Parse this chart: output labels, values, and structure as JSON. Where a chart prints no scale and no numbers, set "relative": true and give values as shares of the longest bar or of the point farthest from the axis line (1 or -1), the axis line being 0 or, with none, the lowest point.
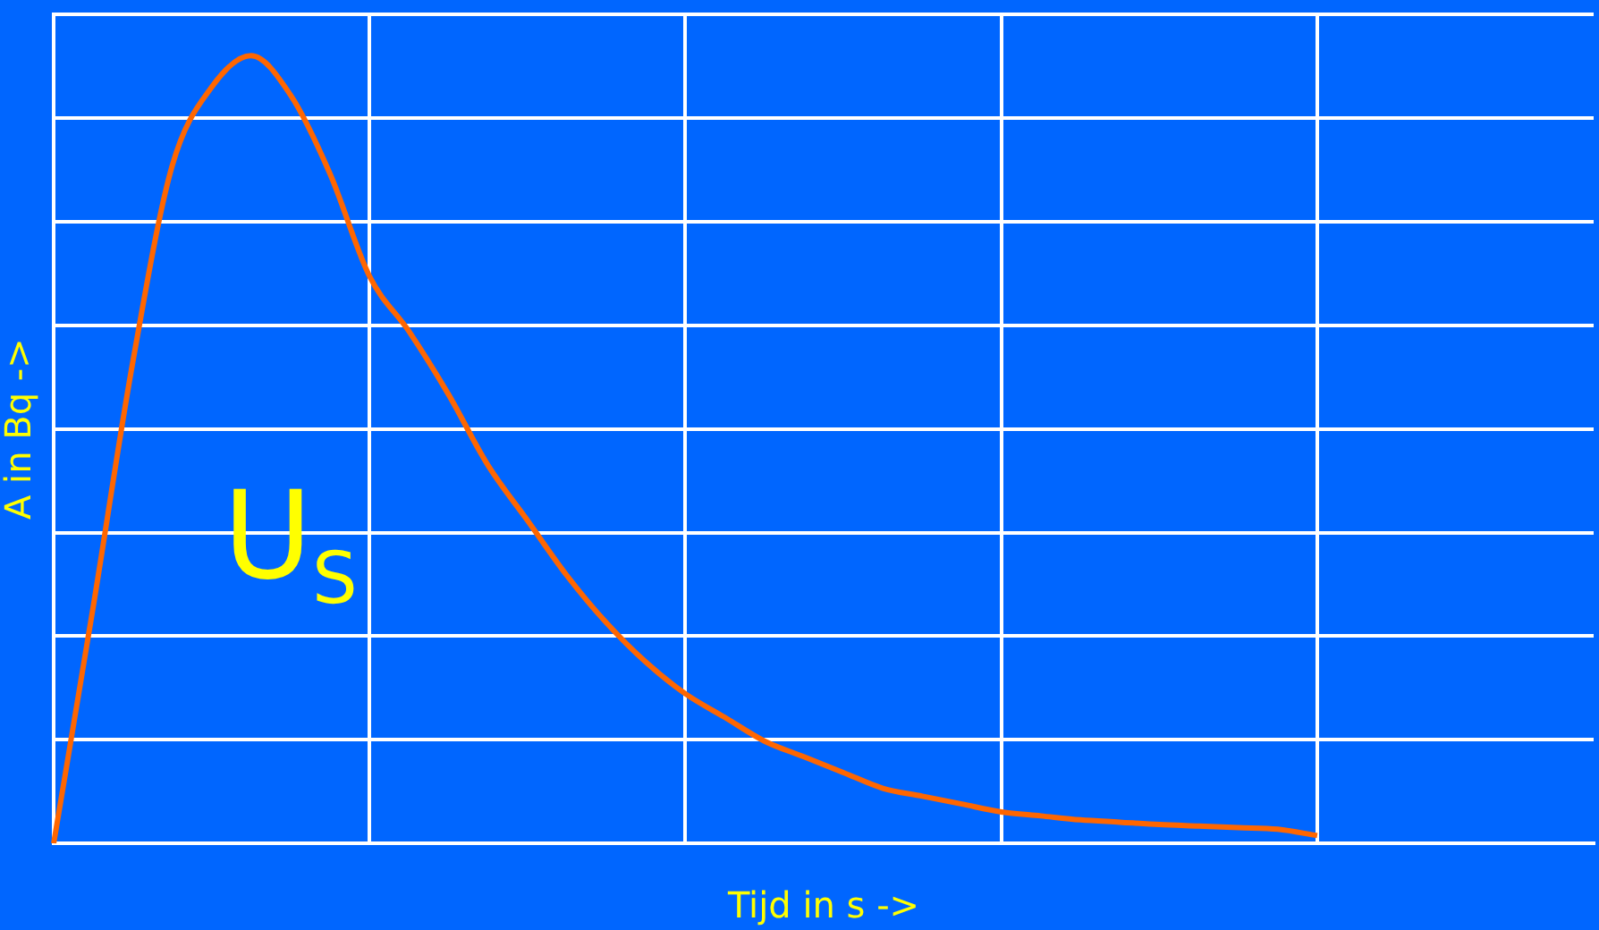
{
  "chart_data": {
    "type": "line",
    "relative": true,
    "xlabel": "Tijd in s ->",
    "ylabel": "A in Bq ->",
    "categories": [
      null,
      null,
      null,
      null,
      null,
      null,
      null,
      null,
      null,
      null,
      null,
      null,
      null,
      null,
      null,
      null,
      null,
      null,
      null,
      null,
      null,
      null,
      null,
      null,
      null,
      null,
      null,
      null,
      null,
      null,
      null,
      null,
      null,
      null,
      null,
      null,
      null,
      null,
      null,
      null
    ],
    "series": [
      {
        "color": "#ff6600",
        "values": [
          0,
          0.3,
          0.61,
          0.86,
          0.96,
          1,
          0.95,
          0.85,
          0.72,
          0.65,
          0.57,
          0.48,
          0.41,
          0.34,
          0.28,
          0.23,
          0.19,
          0.16,
          0.13,
          0.11,
          0.09,
          0.07,
          0.06,
          0.05,
          0.04,
          0.035,
          0.03,
          0.027,
          0.024,
          0.022,
          0.02,
          0.018,
          0.01,
          null,
          null,
          null,
          null,
          null,
          null,
          null
        ]
      }
    ],
    "annotations": [
      "U$_{S}$"
    ],
    "grid": true,
    "marker": "none",
    "line_style": "solid",
    "legend": false
  }
}
